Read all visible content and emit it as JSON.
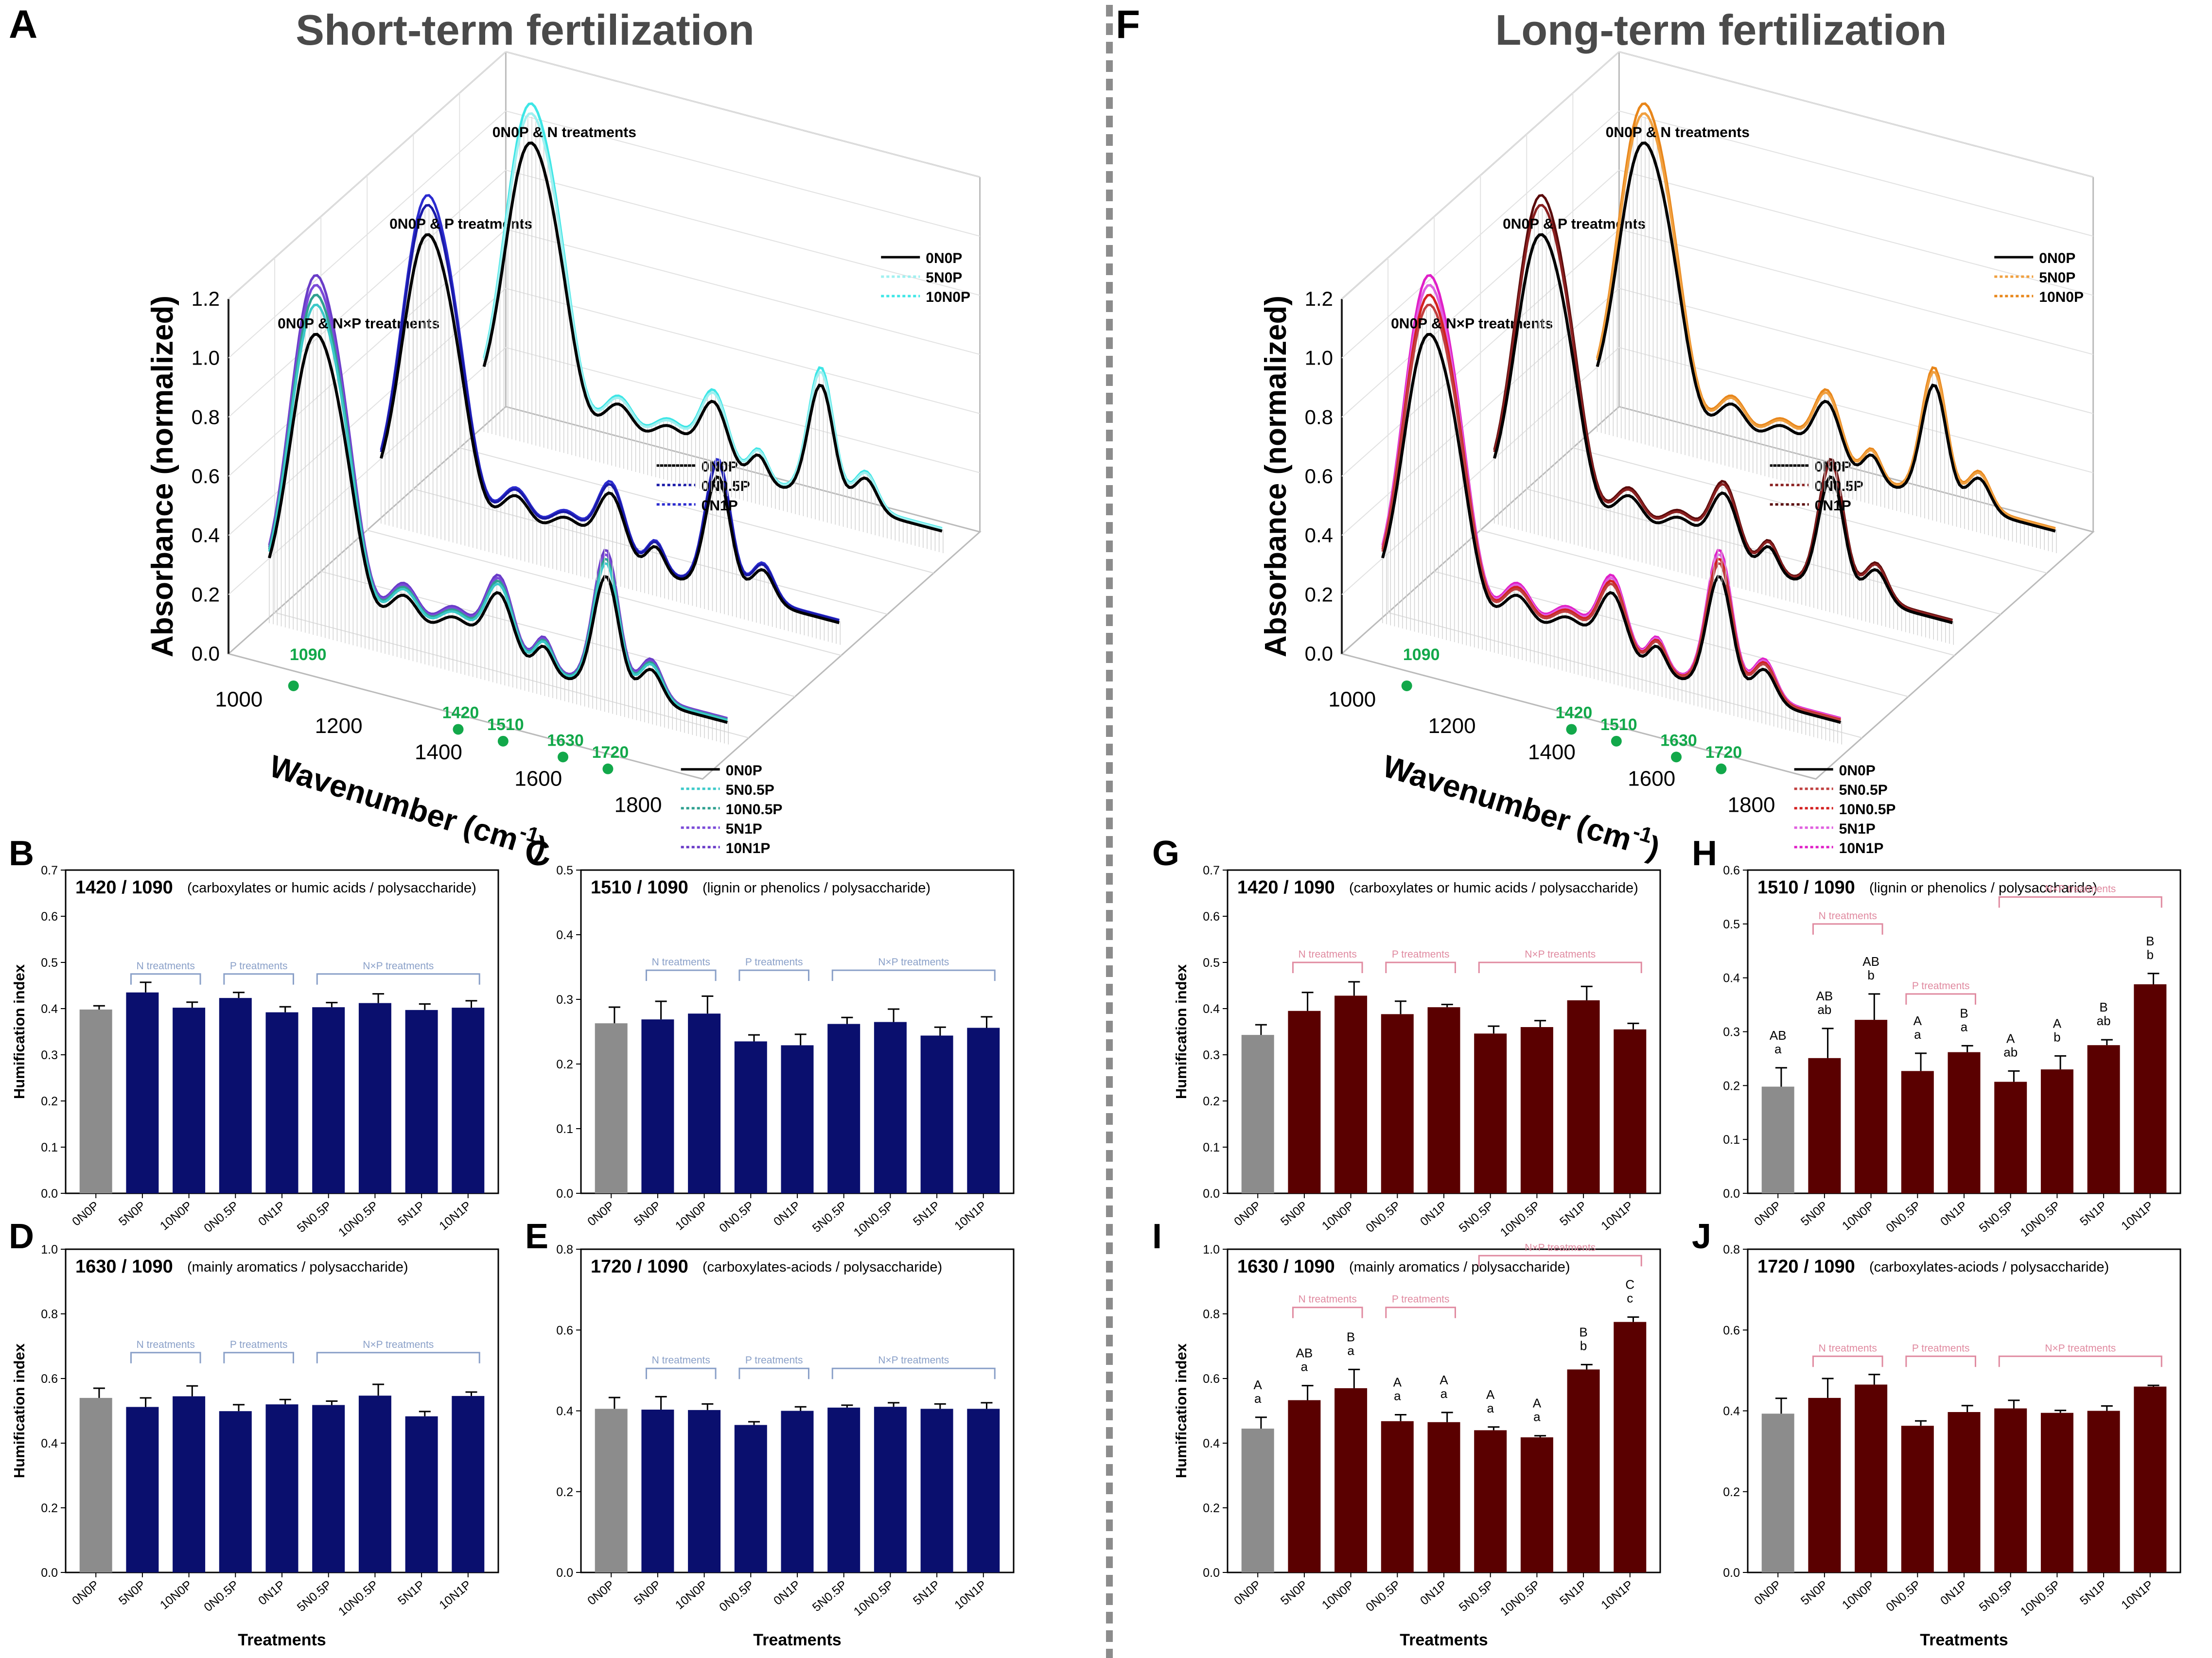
{
  "colors": {
    "short_bar": "#0a0f6e",
    "long_bar": "#5a0000",
    "control_bar": "#8c8c8c",
    "short_bracket": "#8aa0c8",
    "long_bracket": "#e08aa0",
    "marker_green": "#12a84a",
    "divider": "#8c8c8c"
  },
  "panels_3d": [
    {
      "letter": "A",
      "title": "Short-term fertilization",
      "ylabel": "Absorbance (normalized)",
      "xlabel_main": "Wavenumber (cm",
      "xlabel_sup": "-1",
      "xlabel_close": ")",
      "y_ticks": [
        "0.0",
        "0.2",
        "0.4",
        "0.6",
        "0.8",
        "1.0",
        "1.2"
      ],
      "x_ticks": [
        "1000",
        "1200",
        "1400",
        "1600",
        "1800"
      ],
      "markers": [
        "1090",
        "1420",
        "1510",
        "1630",
        "1720"
      ],
      "groups": [
        {
          "label": "0N0P & N×P treatments",
          "legend": [
            "0N0P",
            "5N0.5P",
            "10N0.5P",
            "5N1P",
            "10N1P"
          ],
          "colors": [
            "#000000",
            "#3cc9c9",
            "#2fa090",
            "#7a4ad8",
            "#6a3cc8"
          ]
        },
        {
          "label": "0N0P & P treatments",
          "legend": [
            "0N0P",
            "0N0.5P",
            "0N1P"
          ],
          "colors": [
            "#000000",
            "#1a1aa8",
            "#2b2bd0"
          ]
        },
        {
          "label": "0N0P & N treatments",
          "legend": [
            "0N0P",
            "5N0P",
            "10N0P"
          ],
          "colors": [
            "#000000",
            "#9ff0f0",
            "#3ee6e6"
          ]
        }
      ]
    },
    {
      "letter": "F",
      "title": "Long-term fertilization",
      "ylabel": "Absorbance (normalized)",
      "xlabel_main": "Wavenumber (cm",
      "xlabel_sup": "-1",
      "xlabel_close": ")",
      "y_ticks": [
        "0.0",
        "0.2",
        "0.4",
        "0.6",
        "0.8",
        "1.0",
        "1.2"
      ],
      "x_ticks": [
        "1000",
        "1200",
        "1400",
        "1600",
        "1800"
      ],
      "markers": [
        "1090",
        "1420",
        "1510",
        "1630",
        "1720"
      ],
      "groups": [
        {
          "label": "0N0P & N×P treatments",
          "legend": [
            "0N0P",
            "5N0.5P",
            "10N0.5P",
            "5N1P",
            "10N1P"
          ],
          "colors": [
            "#000000",
            "#c04040",
            "#d42020",
            "#e060e0",
            "#e020c8"
          ]
        },
        {
          "label": "0N0P & P treatments",
          "legend": [
            "0N0P",
            "0N0.5P",
            "0N1P"
          ],
          "colors": [
            "#000000",
            "#8a2020",
            "#5a0a0a"
          ]
        },
        {
          "label": "0N0P & N treatments",
          "legend": [
            "0N0P",
            "5N0P",
            "10N0P"
          ],
          "colors": [
            "#000000",
            "#f0a040",
            "#e8861a"
          ]
        }
      ]
    }
  ],
  "chart_data": [
    {
      "letter": "B",
      "type": "bar",
      "theme": "short",
      "title": "1420 / 1090",
      "subtitle": "(carboxylates or humic acids / polysaccharide)",
      "ylabel": "Humification index",
      "xlabel": "",
      "ylim": [
        0,
        0.7
      ],
      "y_ticks": [
        "0.0",
        "0.1",
        "0.2",
        "0.3",
        "0.4",
        "0.5",
        "0.6",
        "0.7"
      ],
      "categories": [
        "0N0P",
        "5N0P",
        "10N0P",
        "0N0.5P",
        "0N1P",
        "5N0.5P",
        "10N0.5P",
        "5N1P",
        "10N1P"
      ],
      "values": [
        0.398,
        0.435,
        0.402,
        0.423,
        0.392,
        0.403,
        0.412,
        0.397,
        0.402
      ],
      "errors": [
        0.008,
        0.022,
        0.012,
        0.012,
        0.012,
        0.01,
        0.02,
        0.013,
        0.015
      ],
      "brackets": [
        {
          "label": "N treatments",
          "from": 1,
          "to": 2,
          "y": 0.475
        },
        {
          "label": "P treatments",
          "from": 3,
          "to": 4,
          "y": 0.475
        },
        {
          "label": "N×P treatments",
          "from": 5,
          "to": 8,
          "y": 0.475
        }
      ],
      "letters": []
    },
    {
      "letter": "C",
      "type": "bar",
      "theme": "short",
      "title": "1510 / 1090",
      "subtitle": "(lignin or phenolics / polysaccharide)",
      "ylabel": "",
      "xlabel": "",
      "ylim": [
        0,
        0.5
      ],
      "y_ticks": [
        "0.0",
        "0.1",
        "0.2",
        "0.3",
        "0.4",
        "0.5"
      ],
      "categories": [
        "0N0P",
        "5N0P",
        "10N0P",
        "0N0.5P",
        "0N1P",
        "5N0.5P",
        "10N0.5P",
        "5N1P",
        "10N1P"
      ],
      "values": [
        0.263,
        0.269,
        0.278,
        0.235,
        0.229,
        0.262,
        0.265,
        0.244,
        0.256
      ],
      "errors": [
        0.025,
        0.028,
        0.027,
        0.01,
        0.017,
        0.01,
        0.02,
        0.013,
        0.017
      ],
      "brackets": [
        {
          "label": "N treatments",
          "from": 1,
          "to": 2,
          "y": 0.345
        },
        {
          "label": "P treatments",
          "from": 3,
          "to": 4,
          "y": 0.345
        },
        {
          "label": "N×P treatments",
          "from": 5,
          "to": 8,
          "y": 0.345
        }
      ],
      "letters": []
    },
    {
      "letter": "D",
      "type": "bar",
      "theme": "short",
      "title": "1630 / 1090",
      "subtitle": "(mainly aromatics / polysaccharide)",
      "ylabel": "Humification index",
      "xlabel": "Treatments",
      "ylim": [
        0,
        1.0
      ],
      "y_ticks": [
        "0.0",
        "0.2",
        "0.4",
        "0.6",
        "0.8",
        "1.0"
      ],
      "categories": [
        "0N0P",
        "5N0P",
        "10N0P",
        "0N0.5P",
        "0N1P",
        "5N0.5P",
        "10N0.5P",
        "5N1P",
        "10N1P"
      ],
      "values": [
        0.54,
        0.512,
        0.545,
        0.499,
        0.52,
        0.518,
        0.547,
        0.483,
        0.546
      ],
      "errors": [
        0.03,
        0.028,
        0.032,
        0.02,
        0.015,
        0.012,
        0.035,
        0.015,
        0.012
      ],
      "brackets": [
        {
          "label": "N treatments",
          "from": 1,
          "to": 2,
          "y": 0.68
        },
        {
          "label": "P treatments",
          "from": 3,
          "to": 4,
          "y": 0.68
        },
        {
          "label": "N×P treatments",
          "from": 5,
          "to": 8,
          "y": 0.68
        }
      ],
      "letters": []
    },
    {
      "letter": "E",
      "type": "bar",
      "theme": "short",
      "title": "1720 / 1090",
      "subtitle": "(carboxylates-aciods / polysaccharide)",
      "ylabel": "",
      "xlabel": "Treatments",
      "ylim": [
        0,
        0.8
      ],
      "y_ticks": [
        "0.0",
        "0.2",
        "0.4",
        "0.6",
        "0.8"
      ],
      "categories": [
        "0N0P",
        "5N0P",
        "10N0P",
        "0N0.5P",
        "0N1P",
        "5N0.5P",
        "10N0.5P",
        "5N1P",
        "10N1P"
      ],
      "values": [
        0.405,
        0.403,
        0.402,
        0.365,
        0.4,
        0.408,
        0.41,
        0.405,
        0.405
      ],
      "errors": [
        0.028,
        0.032,
        0.015,
        0.008,
        0.01,
        0.006,
        0.01,
        0.012,
        0.015
      ],
      "brackets": [
        {
          "label": "N treatments",
          "from": 1,
          "to": 2,
          "y": 0.505
        },
        {
          "label": "P treatments",
          "from": 3,
          "to": 4,
          "y": 0.505
        },
        {
          "label": "N×P treatments",
          "from": 5,
          "to": 8,
          "y": 0.505
        }
      ],
      "letters": []
    },
    {
      "letter": "G",
      "type": "bar",
      "theme": "long",
      "title": "1420 / 1090",
      "subtitle": "(carboxylates or humic acids / polysaccharide)",
      "ylabel": "Humification index",
      "xlabel": "",
      "ylim": [
        0,
        0.7
      ],
      "y_ticks": [
        "0.0",
        "0.1",
        "0.2",
        "0.3",
        "0.4",
        "0.5",
        "0.6",
        "0.7"
      ],
      "categories": [
        "0N0P",
        "5N0P",
        "10N0P",
        "0N0.5P",
        "0N1P",
        "5N0.5P",
        "10N0.5P",
        "5N1P",
        "10N1P"
      ],
      "values": [
        0.343,
        0.395,
        0.428,
        0.388,
        0.403,
        0.346,
        0.36,
        0.418,
        0.355
      ],
      "errors": [
        0.022,
        0.04,
        0.03,
        0.028,
        0.006,
        0.016,
        0.014,
        0.03,
        0.013
      ],
      "brackets": [
        {
          "label": "N treatments",
          "from": 1,
          "to": 2,
          "y": 0.5
        },
        {
          "label": "P treatments",
          "from": 3,
          "to": 4,
          "y": 0.5
        },
        {
          "label": "N×P treatments",
          "from": 5,
          "to": 8,
          "y": 0.5
        }
      ],
      "letters": []
    },
    {
      "letter": "H",
      "type": "bar",
      "theme": "long",
      "title": "1510 / 1090",
      "subtitle": "(lignin or phenolics / polysaccharide)",
      "ylabel": "",
      "xlabel": "",
      "ylim": [
        0,
        0.6
      ],
      "y_ticks": [
        "0.0",
        "0.1",
        "0.2",
        "0.3",
        "0.4",
        "0.5",
        "0.6"
      ],
      "categories": [
        "0N0P",
        "5N0P",
        "10N0P",
        "0N0.5P",
        "0N1P",
        "5N0.5P",
        "10N0.5P",
        "5N1P",
        "10N1P"
      ],
      "values": [
        0.198,
        0.251,
        0.322,
        0.227,
        0.262,
        0.207,
        0.23,
        0.275,
        0.388
      ],
      "errors": [
        0.035,
        0.055,
        0.048,
        0.033,
        0.012,
        0.02,
        0.025,
        0.01,
        0.02
      ],
      "brackets": [
        {
          "label": "N treatments",
          "from": 1,
          "to": 2,
          "y": 0.5
        },
        {
          "label": "P treatments",
          "from": 3,
          "to": 4,
          "y": 0.37
        },
        {
          "label": "N×P treatments",
          "from": 5,
          "to": 8,
          "y": 0.55
        }
      ],
      "letters": [
        [
          "AB",
          "a"
        ],
        [
          "AB",
          "ab"
        ],
        [
          "AB",
          "b"
        ],
        [
          "A",
          "a"
        ],
        [
          "B",
          "a"
        ],
        [
          "A",
          "ab"
        ],
        [
          "A",
          "b"
        ],
        [
          "B",
          "ab"
        ],
        [
          "B",
          "b"
        ]
      ]
    },
    {
      "letter": "I",
      "type": "bar",
      "theme": "long",
      "title": "1630 / 1090",
      "subtitle": "(mainly aromatics / polysaccharide)",
      "ylabel": "Humification index",
      "xlabel": "Treatments",
      "ylim": [
        0,
        1.0
      ],
      "y_ticks": [
        "0.0",
        "0.2",
        "0.4",
        "0.6",
        "0.8",
        "1.0"
      ],
      "categories": [
        "0N0P",
        "5N0P",
        "10N0P",
        "0N0.5P",
        "0N1P",
        "5N0.5P",
        "10N0.5P",
        "5N1P",
        "10N1P"
      ],
      "values": [
        0.445,
        0.533,
        0.57,
        0.468,
        0.465,
        0.44,
        0.418,
        0.628,
        0.775
      ],
      "errors": [
        0.035,
        0.045,
        0.058,
        0.02,
        0.03,
        0.01,
        0.005,
        0.015,
        0.015
      ],
      "brackets": [
        {
          "label": "N treatments",
          "from": 1,
          "to": 2,
          "y": 0.82
        },
        {
          "label": "P treatments",
          "from": 3,
          "to": 4,
          "y": 0.82
        },
        {
          "label": "N×P treatments",
          "from": 5,
          "to": 8,
          "y": 0.98
        }
      ],
      "letters": [
        [
          "A",
          "a"
        ],
        [
          "AB",
          "a"
        ],
        [
          "B",
          "a"
        ],
        [
          "A",
          "a"
        ],
        [
          "A",
          "a"
        ],
        [
          "A",
          "a"
        ],
        [
          "A",
          "a"
        ],
        [
          "B",
          "b"
        ],
        [
          "C",
          "c"
        ]
      ]
    },
    {
      "letter": "J",
      "type": "bar",
      "theme": "long",
      "title": "1720 / 1090",
      "subtitle": "(carboxylates-aciods / polysaccharide)",
      "ylabel": "",
      "xlabel": "Treatments",
      "ylim": [
        0,
        0.8
      ],
      "y_ticks": [
        "0.0",
        "0.2",
        "0.4",
        "0.6",
        "0.8"
      ],
      "categories": [
        "0N0P",
        "5N0P",
        "10N0P",
        "0N0.5P",
        "0N1P",
        "5N0.5P",
        "10N0.5P",
        "5N1P",
        "10N1P"
      ],
      "values": [
        0.393,
        0.432,
        0.465,
        0.363,
        0.397,
        0.406,
        0.395,
        0.4,
        0.46
      ],
      "errors": [
        0.038,
        0.048,
        0.025,
        0.012,
        0.016,
        0.02,
        0.006,
        0.012,
        0.003
      ],
      "brackets": [
        {
          "label": "N treatments",
          "from": 1,
          "to": 2,
          "y": 0.535
        },
        {
          "label": "P treatments",
          "from": 3,
          "to": 4,
          "y": 0.535
        },
        {
          "label": "N×P treatments",
          "from": 5,
          "to": 8,
          "y": 0.535
        }
      ],
      "letters": []
    }
  ]
}
